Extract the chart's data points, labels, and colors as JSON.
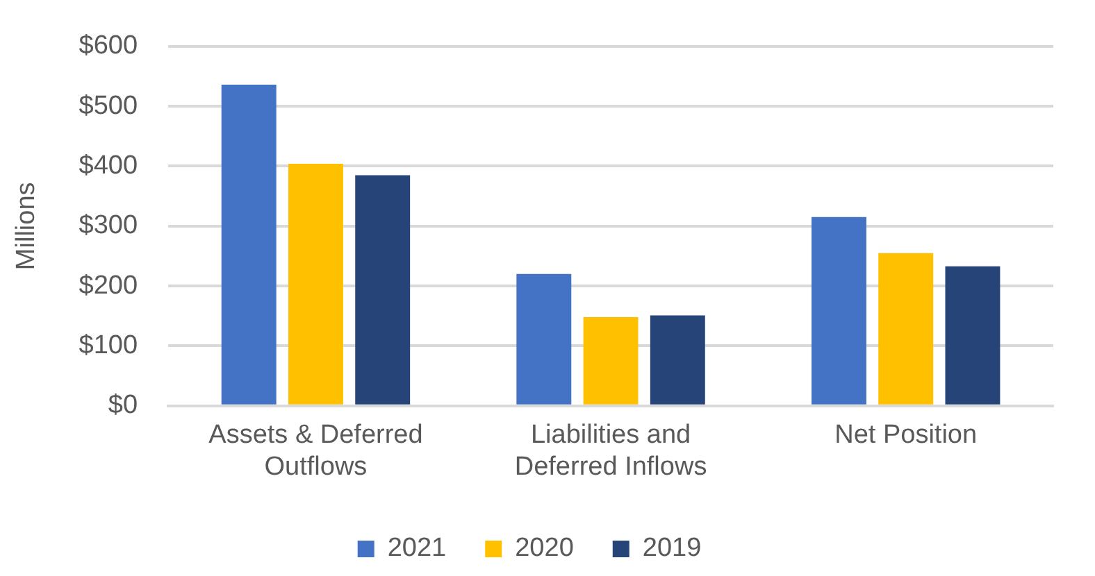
{
  "chart_data": {
    "type": "bar",
    "ylabel": "Millions",
    "categories": [
      "Assets & Deferred Outflows",
      "Liabilities and Deferred Inflows",
      "Net Position"
    ],
    "series": [
      {
        "name": "2021",
        "color": "#4472c4",
        "values": [
          536,
          220,
          315
        ]
      },
      {
        "name": "2020",
        "color": "#ffc000",
        "values": [
          404,
          148,
          255
        ]
      },
      {
        "name": "2019",
        "color": "#264478",
        "values": [
          385,
          151,
          233
        ]
      }
    ],
    "ylim": [
      0,
      600
    ],
    "yticks": [
      {
        "value": 0,
        "label": "$0"
      },
      {
        "value": 100,
        "label": "$100"
      },
      {
        "value": 200,
        "label": "$200"
      },
      {
        "value": 300,
        "label": "$300"
      },
      {
        "value": 400,
        "label": "$400"
      },
      {
        "value": 500,
        "label": "$500"
      },
      {
        "value": 600,
        "label": "$600"
      }
    ],
    "grid": "y",
    "legend": "bottom"
  }
}
